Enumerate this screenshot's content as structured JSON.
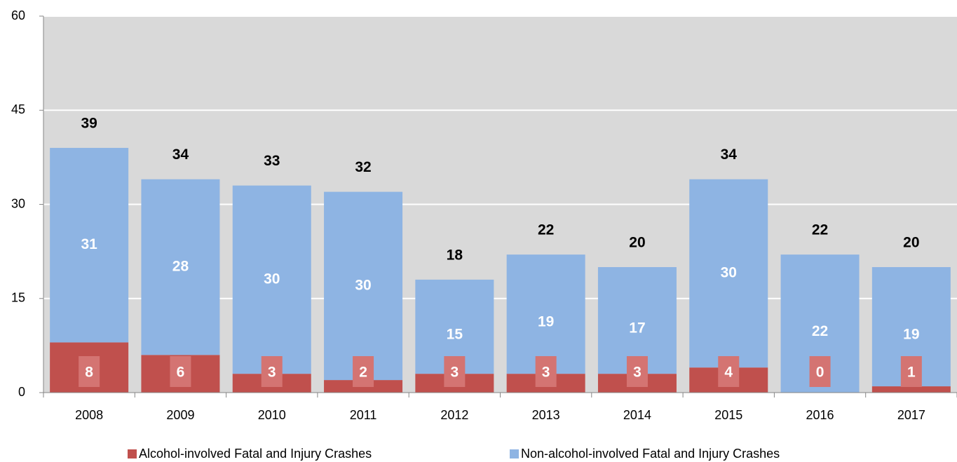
{
  "chart_data": {
    "type": "stacked_bar",
    "categories": [
      "2008",
      "2009",
      "2010",
      "2011",
      "2012",
      "2013",
      "2014",
      "2015",
      "2016",
      "2017"
    ],
    "series": [
      {
        "name": "Alcohol-involved Fatal and Injury Crashes",
        "color": "#c0504d",
        "values": [
          8,
          6,
          3,
          2,
          3,
          3,
          3,
          4,
          0,
          1
        ]
      },
      {
        "name": "Non-alcohol-involved Fatal and Injury Crashes",
        "color": "#8eb4e3",
        "values": [
          31,
          28,
          30,
          30,
          15,
          19,
          17,
          30,
          22,
          19
        ]
      }
    ],
    "totals": [
      39,
      34,
      33,
      32,
      18,
      22,
      20,
      34,
      22,
      20
    ],
    "ylim": [
      0,
      60
    ],
    "yticks": [
      0,
      15,
      30,
      45,
      60
    ],
    "grid": true,
    "legend": "bottom"
  }
}
